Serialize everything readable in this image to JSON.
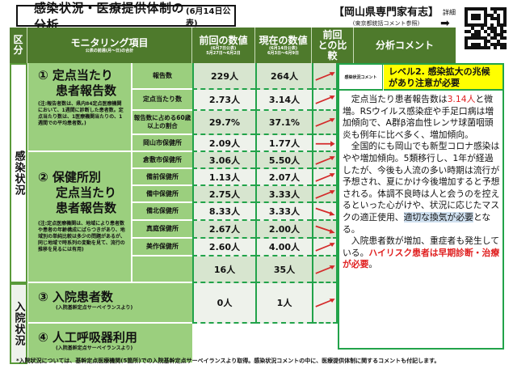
{
  "header": {
    "title": "感染状況・医療提供体制の分析",
    "date": "(6月14日公表)",
    "org_name": "【岡山県専門家有志】",
    "org_sub": "(東京都統括コメント参照)",
    "detail_label": "詳細",
    "detail_arrow": "➡",
    "qr_icon": "qr-code"
  },
  "columns": {
    "kubun": "区分",
    "item": "モニタリング項目",
    "item_sub": "公表の前週(月〜日)の合計",
    "prev": "前回の数値",
    "prev_sub1": "(6月7日公表)",
    "prev_sub2": "5月27日〜6月2日",
    "curr": "現在の数値",
    "curr_sub1": "(6月14日公表)",
    "curr_sub2": "6月3日〜6月9日",
    "compare": "前回との比較",
    "comment": "分析コメント"
  },
  "sections": {
    "infection": "感染状況",
    "hospital": "入院状況"
  },
  "items": [
    {
      "title_line1": "① 定点当たり",
      "title_line2": "患者報告数",
      "note": "(注:報告者数は、県内84定点医療機関において、1週間に診断した患者数。定点当たり数は、1医療機関当たりの、1週間での平均患者数。)"
    },
    {
      "title_line1": "② 保健所別",
      "title_line2": "定点当たり",
      "title_line3": "患者報告数",
      "note": "(注:定点医療機関は、地域により患者数や患者の年齢構成にばらつきがあり、地域別の単純比較は多少の問題があるが、同じ地域で時系列の変動を見て、流行の推移を見るには有用)"
    },
    {
      "title_line1": "③ 入院患者数",
      "note": "(入院基幹定点サーベイランスより)"
    },
    {
      "title_line1": "④ 人工呼吸器利用",
      "note": "(入院基幹定点サーベイランスより)"
    }
  ],
  "rows": [
    {
      "label": "報告数",
      "prev": "229人",
      "curr": "264人",
      "trend": "up"
    },
    {
      "label": "定点当たり数",
      "prev": "2.73人",
      "curr": "3.14人",
      "trend": "up"
    },
    {
      "label": "報告数に占める60歳以上の割合",
      "prev": "29.7%",
      "curr": "37.1%",
      "trend": "up"
    },
    {
      "label": "岡山市保健所",
      "prev": "2.09人",
      "curr": "1.77人",
      "trend": "flat"
    },
    {
      "label": "倉敷市保健所",
      "prev": "3.06人",
      "curr": "5.50人",
      "trend": "up"
    },
    {
      "label": "備前保健所",
      "prev": "1.13人",
      "curr": "2.07人",
      "trend": "up"
    },
    {
      "label": "備中保健所",
      "prev": "2.75人",
      "curr": "3.33人",
      "trend": "up"
    },
    {
      "label": "備北保健所",
      "prev": "8.33人",
      "curr": "3.33人",
      "trend": "down"
    },
    {
      "label": "真庭保健所",
      "prev": "2.67人",
      "curr": "2.00人",
      "trend": "down"
    },
    {
      "label": "美作保健所",
      "prev": "2.60人",
      "curr": "4.00人",
      "trend": "up"
    },
    {
      "label": "",
      "prev": "16人",
      "curr": "35人",
      "trend": "up"
    },
    {
      "label": "",
      "prev": "0人",
      "curr": "1人",
      "trend": "up"
    }
  ],
  "comment": {
    "label": "感染状況コメント",
    "level": "レベル2. 感染拡大の兆候があり注意が必要",
    "p1_a": "　定点当たり患者報告数は",
    "p1_red": "3.14人",
    "p1_b": "と微増。RSウイルス感染症や手足口病は増加傾向で、A群β溶血性レンサ球菌咽頭炎も例年に比べ多く、増加傾向。",
    "p2_a": "　全国的にも岡山でも新型コロナ感染はやや増加傾向。5類移行し、1年が経過したが、今後も人流の多い時期は流行が予想され、夏にかけ今後増加すると予想される。体調不良時は人と会うのを控えるといった心がけや、状況に応じたマスクの適正使用、",
    "p2_hl": "適切な換気が必要",
    "p2_b": "となる。",
    "p3_a": "　入院患者数が増加、重症者も発生している。",
    "p3_red": "ハイリスク患者は早期診断・治療が必要",
    "p3_b": "。"
  },
  "footer": "*入院状況については、基幹定点医療機関(5箇所)での入院基幹定点サーベイランスより取得。感染状況コメントの中に、医療提供体制に関するコメントも付記します。",
  "colors": {
    "header_green": "#4e7a2c",
    "item_green": "#9bcf7e",
    "border_green": "#22a34a",
    "level_yellow": "#ffff00",
    "arrow_red": "#d42a2a",
    "text_red": "#e02020"
  }
}
